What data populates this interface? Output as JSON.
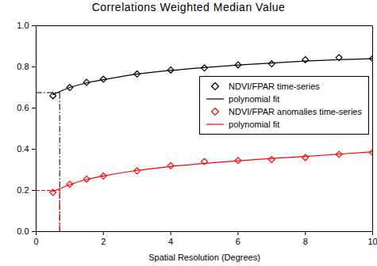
{
  "chart_data": {
    "type": "scatter",
    "title": "Correlations Weighted Median Value",
    "x_label": "Spatial Resolution (Degrees)",
    "xlim": [
      0,
      10
    ],
    "xticks": [
      0,
      2,
      4,
      6,
      8,
      10
    ],
    "ylim": [
      0,
      1
    ],
    "yticks": [
      {
        "value": 0,
        "label": "0.0"
      },
      {
        "value": 0.2,
        "label": "0.2"
      },
      {
        "value": 0.4,
        "label": "0.4"
      },
      {
        "value": 0.6,
        "label": "0.6"
      },
      {
        "value": 0.8,
        "label": "0.8"
      },
      {
        "value": 1,
        "label": "1.0"
      }
    ],
    "grid": false,
    "legend": "right",
    "x": [
      0.5,
      1,
      1.5,
      2,
      3,
      4,
      5,
      6,
      7,
      8,
      9,
      10
    ],
    "series": [
      {
        "name": "NDVI/FPAR time-series",
        "type": "scatter",
        "marker": "diamond",
        "color": "black",
        "values": [
          0.66,
          0.7,
          0.725,
          0.74,
          0.765,
          0.785,
          0.795,
          0.81,
          0.815,
          0.835,
          0.845,
          0.84
        ]
      },
      {
        "name": "polynomial fit",
        "type": "line",
        "line_style": "solid",
        "color": "black",
        "values": [
          0.665,
          0.7,
          0.722,
          0.738,
          0.765,
          0.783,
          0.797,
          0.809,
          0.819,
          0.828,
          0.835,
          0.84
        ]
      },
      {
        "name": "NDVI/FPAR anomalies time-series",
        "type": "scatter",
        "marker": "diamond",
        "color": "red",
        "values": [
          0.19,
          0.23,
          0.255,
          0.27,
          0.295,
          0.32,
          0.34,
          0.345,
          0.35,
          0.36,
          0.375,
          0.385
        ]
      },
      {
        "name": "polynomial fit",
        "type": "line",
        "line_style": "solid",
        "color": "red",
        "values": [
          0.195,
          0.228,
          0.253,
          0.27,
          0.297,
          0.316,
          0.331,
          0.344,
          0.355,
          0.365,
          0.376,
          0.388
        ]
      }
    ],
    "guides": [
      {
        "x": 0.7,
        "y": 0.675,
        "color": "black",
        "line_style": "dashdot"
      },
      {
        "x": 0.7,
        "y": 0.2,
        "color": "red",
        "line_style": "dashed"
      }
    ]
  }
}
